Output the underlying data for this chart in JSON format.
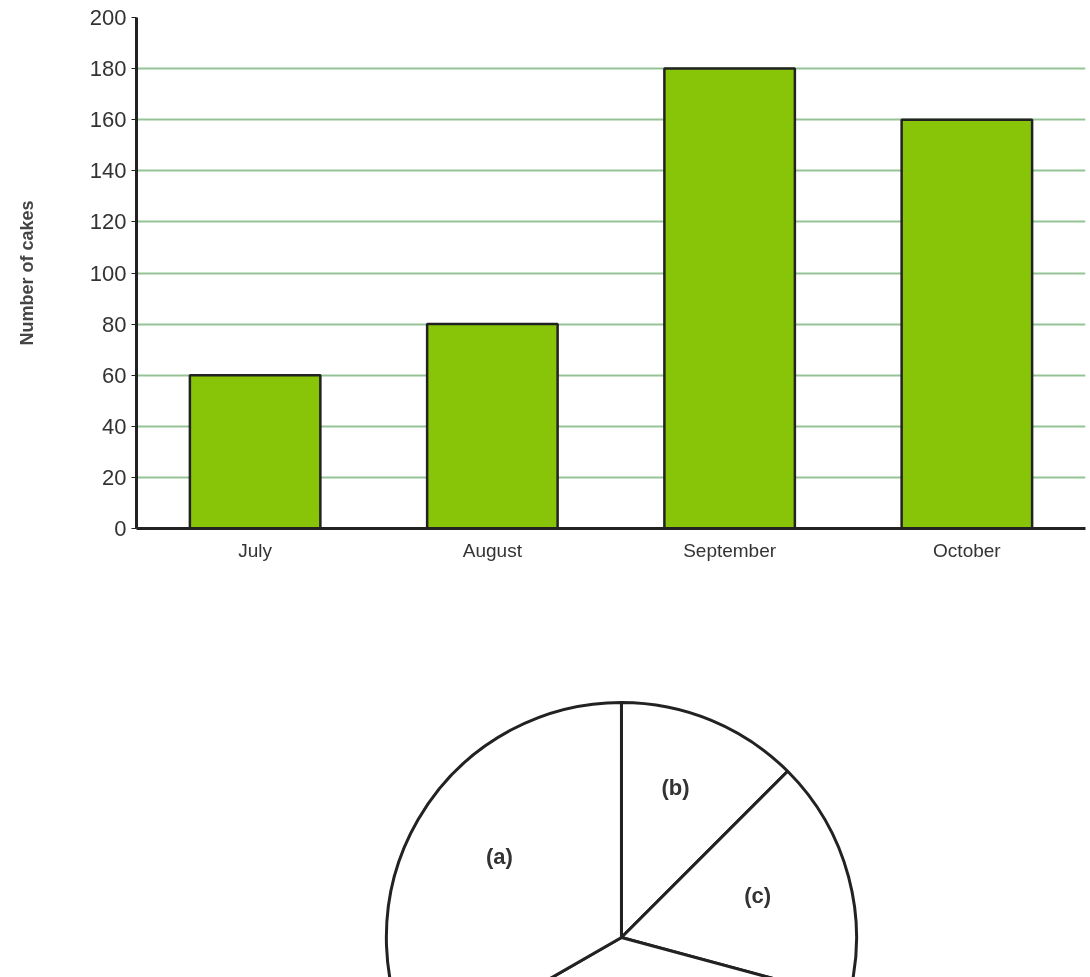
{
  "chart_data": [
    {
      "type": "bar",
      "ylabel": "Number of cakes",
      "categories": [
        "July",
        "August",
        "September",
        "October"
      ],
      "values": [
        60,
        80,
        180,
        160
      ],
      "color": "#88c408",
      "ylim": [
        0,
        200
      ],
      "yticks": [
        0,
        20,
        40,
        60,
        80,
        100,
        120,
        140,
        160,
        180,
        200
      ],
      "grid": "y"
    },
    {
      "type": "pie",
      "categories": [
        "(b)",
        "(c)",
        null,
        "(a)"
      ],
      "values": [
        12.5,
        16.7,
        37.5,
        33.3
      ],
      "colors": [
        "#ffffff",
        "#ffffff",
        "#ffffff",
        "#ffffff"
      ]
    }
  ]
}
